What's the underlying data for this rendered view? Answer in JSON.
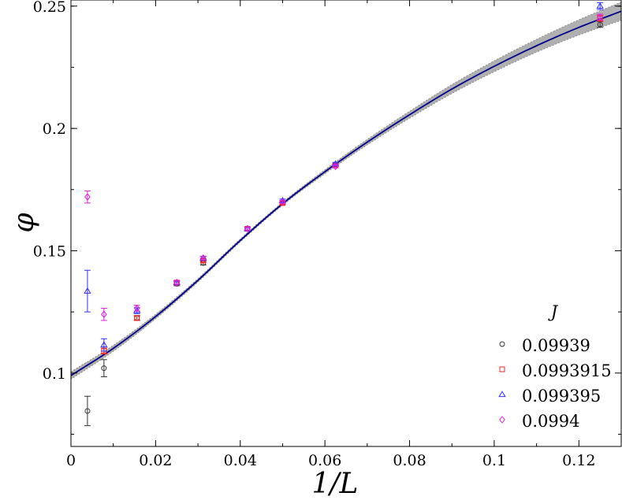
{
  "chart_data": {
    "type": "scatter",
    "xlabel": "1/L",
    "ylabel": "φ",
    "xlim": [
      0,
      0.13
    ],
    "ylim": [
      0.07,
      0.2525
    ],
    "x_ticks": [
      0,
      0.02,
      0.04,
      0.06,
      0.08,
      0.1,
      0.12
    ],
    "x_tick_labels": [
      "0",
      "0.02",
      "0.04",
      "0.06",
      "0.08",
      "0.1",
      "0.12"
    ],
    "y_ticks": [
      0.1,
      0.15,
      0.2,
      0.25
    ],
    "y_tick_labels": [
      "0.1",
      "0.15",
      "0.2",
      "0.25"
    ],
    "grid": false,
    "legend": {
      "title": "J",
      "placement": "bottom-right"
    },
    "fit": {
      "color": "#00008b",
      "band_color": "#b0b0b0",
      "x": [
        0,
        0.01,
        0.02,
        0.03,
        0.04,
        0.05,
        0.06,
        0.07,
        0.08,
        0.09,
        0.1,
        0.11,
        0.12,
        0.13
      ],
      "y": [
        0.099,
        0.1101,
        0.1231,
        0.1379,
        0.1542,
        0.1692,
        0.1823,
        0.1944,
        0.2056,
        0.2161,
        0.2254,
        0.2338,
        0.2413,
        0.2479
      ],
      "band_halfwidth": [
        0.0015,
        0.0012,
        0.0009,
        0.0007,
        0.0006,
        0.0006,
        0.0008,
        0.0011,
        0.0014,
        0.0018,
        0.0022,
        0.0026,
        0.0031,
        0.0037
      ]
    },
    "series": [
      {
        "name": "0.09939",
        "marker": "circle",
        "color": "#333333",
        "points": [
          {
            "x": 0.0039,
            "y": 0.0845,
            "err": 0.006
          },
          {
            "x": 0.0078,
            "y": 0.102,
            "err": 0.0035
          },
          {
            "x": 0.0156,
            "y": 0.1225,
            "err": 0.001
          },
          {
            "x": 0.025,
            "y": 0.1365,
            "err": 0.0008
          },
          {
            "x": 0.03125,
            "y": 0.145,
            "err": 0.0008
          },
          {
            "x": 0.0417,
            "y": 0.159,
            "err": 0.0006
          },
          {
            "x": 0.05,
            "y": 0.1695,
            "err": 0.0006
          },
          {
            "x": 0.0625,
            "y": 0.185,
            "err": 0.0006
          },
          {
            "x": 0.125,
            "y": 0.2425,
            "err": 0.0012
          }
        ]
      },
      {
        "name": "0.0993915",
        "marker": "square",
        "color": "#ff2020",
        "points": [
          {
            "x": 0.0078,
            "y": 0.109,
            "err": 0.0012
          },
          {
            "x": 0.0156,
            "y": 0.1225,
            "err": 0.0009
          },
          {
            "x": 0.025,
            "y": 0.137,
            "err": 0.0007
          },
          {
            "x": 0.03125,
            "y": 0.146,
            "err": 0.0007
          },
          {
            "x": 0.0417,
            "y": 0.159,
            "err": 0.0006
          },
          {
            "x": 0.05,
            "y": 0.1695,
            "err": 0.0006
          },
          {
            "x": 0.0625,
            "y": 0.185,
            "err": 0.0006
          },
          {
            "x": 0.125,
            "y": 0.245,
            "err": 0.0012
          }
        ]
      },
      {
        "name": "0.099395",
        "marker": "triangle",
        "color": "#3030ff",
        "points": [
          {
            "x": 0.0039,
            "y": 0.1335,
            "err": 0.0085
          },
          {
            "x": 0.0078,
            "y": 0.1115,
            "err": 0.0025
          },
          {
            "x": 0.0156,
            "y": 0.1255,
            "err": 0.0012
          },
          {
            "x": 0.025,
            "y": 0.137,
            "err": 0.0007
          },
          {
            "x": 0.03125,
            "y": 0.147,
            "err": 0.0007
          },
          {
            "x": 0.0417,
            "y": 0.159,
            "err": 0.0006
          },
          {
            "x": 0.05,
            "y": 0.1705,
            "err": 0.0006
          },
          {
            "x": 0.0625,
            "y": 0.1855,
            "err": 0.0006
          },
          {
            "x": 0.125,
            "y": 0.25,
            "err": 0.0014
          }
        ]
      },
      {
        "name": "0.0994",
        "marker": "diamond",
        "color": "#e020e0",
        "points": [
          {
            "x": 0.0039,
            "y": 0.172,
            "err": 0.0025
          },
          {
            "x": 0.0078,
            "y": 0.124,
            "err": 0.0025
          },
          {
            "x": 0.0156,
            "y": 0.1265,
            "err": 0.0012
          },
          {
            "x": 0.025,
            "y": 0.137,
            "err": 0.0007
          },
          {
            "x": 0.03125,
            "y": 0.147,
            "err": 0.0007
          },
          {
            "x": 0.0417,
            "y": 0.159,
            "err": 0.0006
          },
          {
            "x": 0.05,
            "y": 0.17,
            "err": 0.0006
          },
          {
            "x": 0.0625,
            "y": 0.1845,
            "err": 0.0006
          },
          {
            "x": 0.125,
            "y": 0.2455,
            "err": 0.0012
          }
        ]
      }
    ]
  }
}
